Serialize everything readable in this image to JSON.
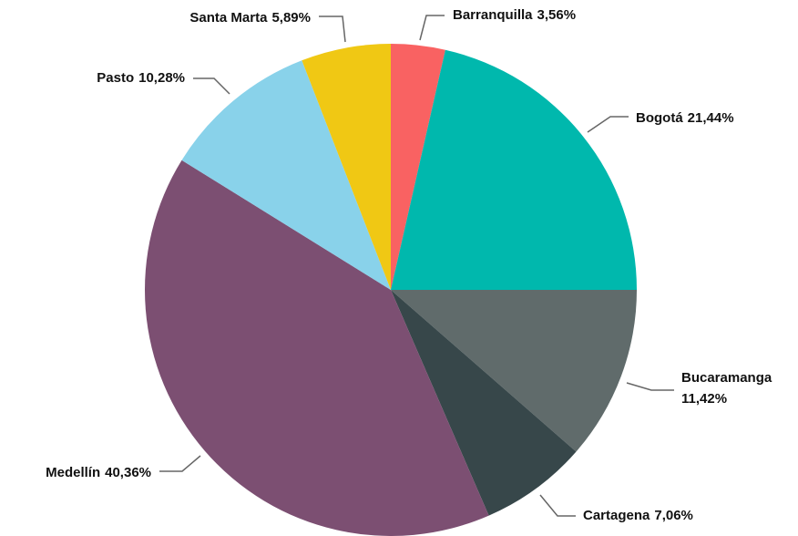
{
  "chart_data": {
    "type": "pie",
    "categories": [
      "Barranquilla",
      "Bogotá",
      "Bucaramanga",
      "Cartagena",
      "Medellín",
      "Pasto",
      "Santa Marta"
    ],
    "values": [
      3.56,
      21.44,
      11.42,
      7.06,
      40.36,
      10.28,
      5.89
    ],
    "value_labels": [
      "3,56%",
      "21,44%",
      "11,42%",
      "7,06%",
      "40,36%",
      "10,28%",
      "5,89%"
    ],
    "colors": [
      "#f96262",
      "#00b8ad",
      "#606b6b",
      "#37474a",
      "#7c4f72",
      "#89d2ea",
      "#f0c814"
    ]
  }
}
